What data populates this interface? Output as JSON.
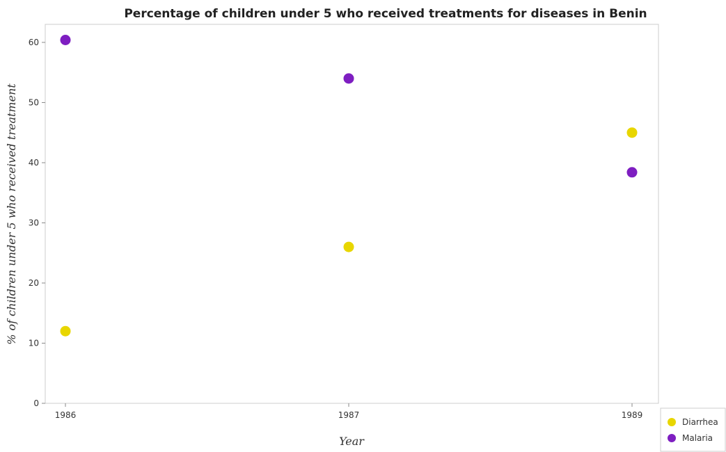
{
  "chart_data": {
    "type": "scatter",
    "title": "Percentage of children under 5 who received treatments for diseases in Benin",
    "xlabel": "Year",
    "ylabel": "% of children under 5 who received treatment",
    "categories": [
      "1986",
      "1987",
      "1989"
    ],
    "ylim": [
      0,
      63
    ],
    "yticks": [
      0,
      10,
      20,
      30,
      40,
      50,
      60
    ],
    "grid": false,
    "legend_position": "bottom-right",
    "series": [
      {
        "name": "Diarrhea",
        "color": "#e8d600",
        "values": [
          12.0,
          26.0,
          45.0
        ]
      },
      {
        "name": "Malaria",
        "color": "#7e1ec1",
        "values": [
          60.4,
          54.0,
          38.4
        ]
      }
    ]
  }
}
